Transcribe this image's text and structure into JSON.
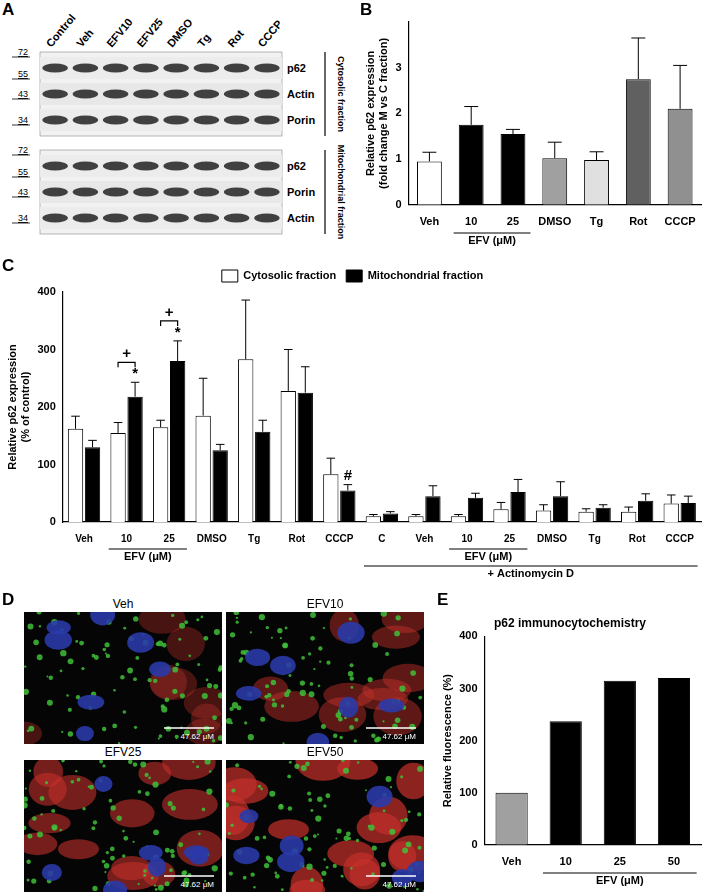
{
  "blot": {
    "panel_label": "A",
    "lanes": [
      "Control",
      "Veh",
      "EFV10",
      "EFV25",
      "DMSO",
      "Tg",
      "Rot",
      "CCCP"
    ],
    "sections": [
      {
        "fraction": "Cytosolic fraction",
        "markers": [
          72,
          55,
          43,
          34
        ],
        "rows": [
          "p62",
          "Actin",
          "Porin"
        ]
      },
      {
        "fraction": "Mitochondrial fraction",
        "markers": [
          72,
          55,
          43,
          34
        ],
        "rows": [
          "p62",
          "Porin",
          "Actin"
        ]
      }
    ]
  },
  "micrographs": {
    "panel_label": "D",
    "tiles": [
      {
        "label": "Veh",
        "scale_bar": "47.62 μM"
      },
      {
        "label": "EFV10",
        "scale_bar": "47.62 μM"
      },
      {
        "label": "EFV25",
        "scale_bar": "47.62 μM"
      },
      {
        "label": "EFV50",
        "scale_bar": "47.62 μM"
      }
    ]
  },
  "chart_data": [
    {
      "panel_label": "B",
      "type": "bar",
      "y_label": [
        "Relative p62 expression",
        "(fold change M vs C fraction)"
      ],
      "categories": [
        "Veh",
        "10",
        "25",
        "DMSO",
        "Tg",
        "Rot",
        "CCCP"
      ],
      "values": [
        0.95,
        1.75,
        1.55,
        1.02,
        0.98,
        2.75,
        2.1
      ],
      "errors": [
        0.2,
        0.4,
        0.1,
        0.35,
        0.18,
        0.9,
        0.95
      ],
      "colors": [
        "#ffffff",
        "#000000",
        "#000000",
        "#a0a0a0",
        "#e0e0e0",
        "#606060",
        "#909090"
      ],
      "group_labels": [
        {
          "label": "EFV (μM)",
          "span": [
            1,
            2
          ]
        }
      ],
      "ylim": [
        0,
        4
      ],
      "yticks": [
        0,
        1,
        2,
        3
      ],
      "grid": false
    },
    {
      "panel_label": "C",
      "type": "bar",
      "y_label": [
        "Relative p62 expression",
        "(% of control)"
      ],
      "categories": [
        "Veh",
        "10",
        "25",
        "DMSO",
        "Tg",
        "Rot",
        "CCCP",
        "C",
        "Veh",
        "10",
        "25",
        "DMSO",
        "Tg",
        "Rot",
        "CCCP"
      ],
      "series": [
        {
          "name": "Cytosolic fraction",
          "color": "#ffffff",
          "values": [
            162,
            155,
            165,
            185,
            283,
            228,
            83,
            10,
            10,
            10,
            22,
            20,
            18,
            18,
            32
          ],
          "errors": [
            22,
            18,
            12,
            65,
            103,
            72,
            28,
            3,
            3,
            3,
            12,
            10,
            5,
            8,
            15
          ]
        },
        {
          "name": "Mitochondrial fraction",
          "color": "#000000",
          "values": [
            130,
            218,
            280,
            125,
            157,
            225,
            55,
            15,
            45,
            42,
            52,
            45,
            25,
            37,
            33
          ],
          "errors": [
            12,
            25,
            35,
            10,
            20,
            45,
            10,
            3,
            18,
            8,
            22,
            25,
            5,
            12,
            12
          ]
        }
      ],
      "group_labels": [
        {
          "label": "EFV (μM)",
          "span": [
            1,
            2
          ]
        },
        {
          "label": "EFV (μM)",
          "span": [
            9,
            10
          ]
        },
        {
          "label": "+ Actinomycin D",
          "span": [
            7,
            14
          ]
        }
      ],
      "annotations": [
        {
          "text": "*",
          "series": "Mitochondrial fraction",
          "category_index": 1
        },
        {
          "text": "*",
          "series": "Mitochondrial fraction",
          "category_index": 2
        },
        {
          "text": "#",
          "series": "Mitochondrial fraction",
          "category_index": 6
        },
        {
          "text": "+",
          "bracket": [
            "Cytosolic fraction",
            "Mitochondrial fraction"
          ],
          "category_index": 1
        },
        {
          "text": "+",
          "bracket": [
            "Cytosolic fraction",
            "Mitochondrial fraction"
          ],
          "category_index": 2
        }
      ],
      "ylim": [
        0,
        400
      ],
      "yticks": [
        0,
        100,
        200,
        300,
        400
      ],
      "legend": "top",
      "grid": false
    },
    {
      "panel_label": "E",
      "type": "bar",
      "title": "p62 immunocytochemistry",
      "y_label": "Relative fluorescence (%)",
      "categories": [
        "Veh",
        "10",
        "25",
        "50"
      ],
      "values": [
        100,
        237,
        315,
        320
      ],
      "colors": [
        "#a0a0a0",
        "#000000",
        "#000000",
        "#000000"
      ],
      "group_labels": [
        {
          "label": "EFV (μM)",
          "span": [
            1,
            3
          ]
        }
      ],
      "ylim": [
        0,
        400
      ],
      "yticks": [
        0,
        100,
        200,
        300,
        400
      ],
      "grid": false
    }
  ]
}
